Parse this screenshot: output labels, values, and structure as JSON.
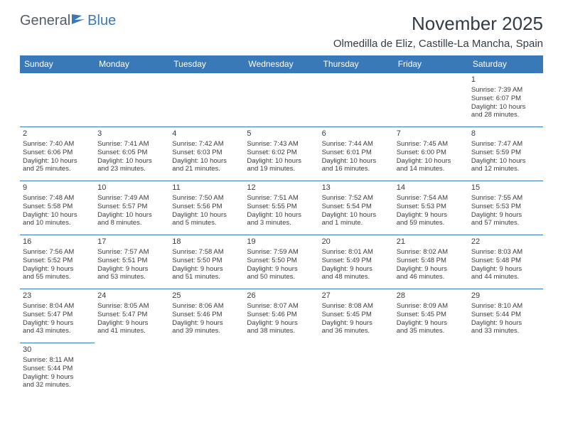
{
  "logo": {
    "general": "General",
    "blue": "Blue"
  },
  "title": "November 2025",
  "location": "Olmedilla de Eliz, Castille-La Mancha, Spain",
  "colors": {
    "header_bg": "#3a79b7",
    "header_text": "#ffffff",
    "border": "#3a79b7",
    "body_text": "#3b3b3b"
  },
  "typography": {
    "title_fontsize": 26,
    "location_fontsize": 15,
    "daynum_fontsize": 11,
    "cell_fontsize": 9.5,
    "header_fontsize": 12
  },
  "day_headers": [
    "Sunday",
    "Monday",
    "Tuesday",
    "Wednesday",
    "Thursday",
    "Friday",
    "Saturday"
  ],
  "weeks": [
    [
      null,
      null,
      null,
      null,
      null,
      null,
      {
        "n": "1",
        "sr": "Sunrise: 7:39 AM",
        "ss": "Sunset: 6:07 PM",
        "d1": "Daylight: 10 hours",
        "d2": "and 28 minutes."
      }
    ],
    [
      {
        "n": "2",
        "sr": "Sunrise: 7:40 AM",
        "ss": "Sunset: 6:06 PM",
        "d1": "Daylight: 10 hours",
        "d2": "and 25 minutes."
      },
      {
        "n": "3",
        "sr": "Sunrise: 7:41 AM",
        "ss": "Sunset: 6:05 PM",
        "d1": "Daylight: 10 hours",
        "d2": "and 23 minutes."
      },
      {
        "n": "4",
        "sr": "Sunrise: 7:42 AM",
        "ss": "Sunset: 6:03 PM",
        "d1": "Daylight: 10 hours",
        "d2": "and 21 minutes."
      },
      {
        "n": "5",
        "sr": "Sunrise: 7:43 AM",
        "ss": "Sunset: 6:02 PM",
        "d1": "Daylight: 10 hours",
        "d2": "and 19 minutes."
      },
      {
        "n": "6",
        "sr": "Sunrise: 7:44 AM",
        "ss": "Sunset: 6:01 PM",
        "d1": "Daylight: 10 hours",
        "d2": "and 16 minutes."
      },
      {
        "n": "7",
        "sr": "Sunrise: 7:45 AM",
        "ss": "Sunset: 6:00 PM",
        "d1": "Daylight: 10 hours",
        "d2": "and 14 minutes."
      },
      {
        "n": "8",
        "sr": "Sunrise: 7:47 AM",
        "ss": "Sunset: 5:59 PM",
        "d1": "Daylight: 10 hours",
        "d2": "and 12 minutes."
      }
    ],
    [
      {
        "n": "9",
        "sr": "Sunrise: 7:48 AM",
        "ss": "Sunset: 5:58 PM",
        "d1": "Daylight: 10 hours",
        "d2": "and 10 minutes."
      },
      {
        "n": "10",
        "sr": "Sunrise: 7:49 AM",
        "ss": "Sunset: 5:57 PM",
        "d1": "Daylight: 10 hours",
        "d2": "and 8 minutes."
      },
      {
        "n": "11",
        "sr": "Sunrise: 7:50 AM",
        "ss": "Sunset: 5:56 PM",
        "d1": "Daylight: 10 hours",
        "d2": "and 5 minutes."
      },
      {
        "n": "12",
        "sr": "Sunrise: 7:51 AM",
        "ss": "Sunset: 5:55 PM",
        "d1": "Daylight: 10 hours",
        "d2": "and 3 minutes."
      },
      {
        "n": "13",
        "sr": "Sunrise: 7:52 AM",
        "ss": "Sunset: 5:54 PM",
        "d1": "Daylight: 10 hours",
        "d2": "and 1 minute."
      },
      {
        "n": "14",
        "sr": "Sunrise: 7:54 AM",
        "ss": "Sunset: 5:53 PM",
        "d1": "Daylight: 9 hours",
        "d2": "and 59 minutes."
      },
      {
        "n": "15",
        "sr": "Sunrise: 7:55 AM",
        "ss": "Sunset: 5:53 PM",
        "d1": "Daylight: 9 hours",
        "d2": "and 57 minutes."
      }
    ],
    [
      {
        "n": "16",
        "sr": "Sunrise: 7:56 AM",
        "ss": "Sunset: 5:52 PM",
        "d1": "Daylight: 9 hours",
        "d2": "and 55 minutes."
      },
      {
        "n": "17",
        "sr": "Sunrise: 7:57 AM",
        "ss": "Sunset: 5:51 PM",
        "d1": "Daylight: 9 hours",
        "d2": "and 53 minutes."
      },
      {
        "n": "18",
        "sr": "Sunrise: 7:58 AM",
        "ss": "Sunset: 5:50 PM",
        "d1": "Daylight: 9 hours",
        "d2": "and 51 minutes."
      },
      {
        "n": "19",
        "sr": "Sunrise: 7:59 AM",
        "ss": "Sunset: 5:50 PM",
        "d1": "Daylight: 9 hours",
        "d2": "and 50 minutes."
      },
      {
        "n": "20",
        "sr": "Sunrise: 8:01 AM",
        "ss": "Sunset: 5:49 PM",
        "d1": "Daylight: 9 hours",
        "d2": "and 48 minutes."
      },
      {
        "n": "21",
        "sr": "Sunrise: 8:02 AM",
        "ss": "Sunset: 5:48 PM",
        "d1": "Daylight: 9 hours",
        "d2": "and 46 minutes."
      },
      {
        "n": "22",
        "sr": "Sunrise: 8:03 AM",
        "ss": "Sunset: 5:48 PM",
        "d1": "Daylight: 9 hours",
        "d2": "and 44 minutes."
      }
    ],
    [
      {
        "n": "23",
        "sr": "Sunrise: 8:04 AM",
        "ss": "Sunset: 5:47 PM",
        "d1": "Daylight: 9 hours",
        "d2": "and 43 minutes."
      },
      {
        "n": "24",
        "sr": "Sunrise: 8:05 AM",
        "ss": "Sunset: 5:47 PM",
        "d1": "Daylight: 9 hours",
        "d2": "and 41 minutes."
      },
      {
        "n": "25",
        "sr": "Sunrise: 8:06 AM",
        "ss": "Sunset: 5:46 PM",
        "d1": "Daylight: 9 hours",
        "d2": "and 39 minutes."
      },
      {
        "n": "26",
        "sr": "Sunrise: 8:07 AM",
        "ss": "Sunset: 5:46 PM",
        "d1": "Daylight: 9 hours",
        "d2": "and 38 minutes."
      },
      {
        "n": "27",
        "sr": "Sunrise: 8:08 AM",
        "ss": "Sunset: 5:45 PM",
        "d1": "Daylight: 9 hours",
        "d2": "and 36 minutes."
      },
      {
        "n": "28",
        "sr": "Sunrise: 8:09 AM",
        "ss": "Sunset: 5:45 PM",
        "d1": "Daylight: 9 hours",
        "d2": "and 35 minutes."
      },
      {
        "n": "29",
        "sr": "Sunrise: 8:10 AM",
        "ss": "Sunset: 5:44 PM",
        "d1": "Daylight: 9 hours",
        "d2": "and 33 minutes."
      }
    ],
    [
      {
        "n": "30",
        "sr": "Sunrise: 8:11 AM",
        "ss": "Sunset: 5:44 PM",
        "d1": "Daylight: 9 hours",
        "d2": "and 32 minutes."
      },
      null,
      null,
      null,
      null,
      null,
      null
    ]
  ]
}
